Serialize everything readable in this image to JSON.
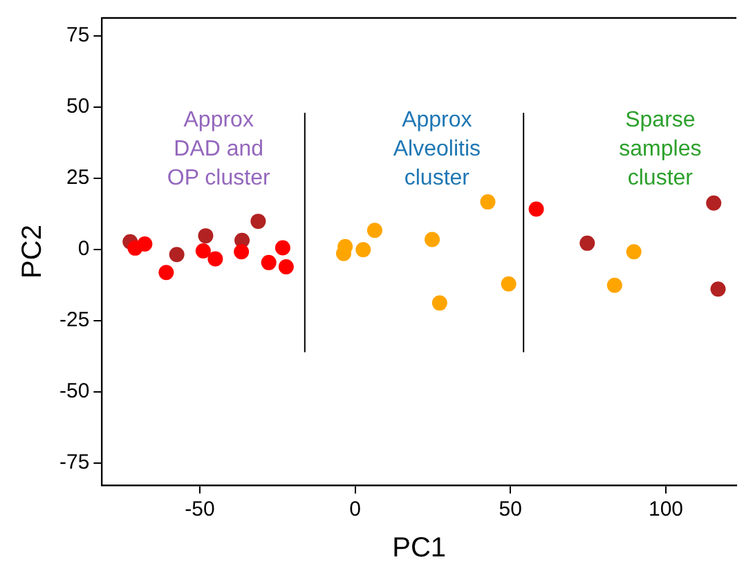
{
  "chart_data": {
    "type": "scatter",
    "xlabel": "PC1",
    "ylabel": "PC2",
    "xlim": [
      -81.5,
      122.7
    ],
    "ylim": [
      -82.8,
      81.3
    ],
    "xticks": [
      -50,
      0,
      50,
      100
    ],
    "yticks": [
      -75,
      -50,
      -25,
      0,
      25,
      50,
      75
    ],
    "grid": false,
    "legend": false,
    "marker": "circle",
    "series": [
      {
        "color": "#b22222",
        "x": [
          -72.4,
          -57.4,
          -48.1,
          -36.4,
          -31.2,
          74.7,
          115.4,
          116.8
        ],
        "values": [
          2.7,
          -1.8,
          4.8,
          3.2,
          9.9,
          2.2,
          16.3,
          -13.9
        ]
      },
      {
        "color": "#ff0000",
        "x": [
          -70.8,
          -67.7,
          -60.8,
          -48.9,
          -45,
          -36.6,
          -23.3,
          -27.8,
          -22.2,
          58.3
        ],
        "values": [
          0.5,
          1.9,
          -8.1,
          -0.5,
          -3.3,
          -0.8,
          0.6,
          -4.6,
          -6.1,
          14.2
        ]
      },
      {
        "color": "#ffa500",
        "x": [
          -3.2,
          -3.7,
          2.6,
          6.3,
          24.8,
          27.2,
          42.7,
          49.4,
          83.5,
          89.7
        ],
        "values": [
          1.0,
          -1.4,
          -0.1,
          6.7,
          3.5,
          -18.8,
          16.7,
          -12.1,
          -12.6,
          -0.8
        ]
      },
      {
        "type": "line",
        "color": "#000000",
        "marker": "none",
        "x": [
          -16.2,
          -16.2
        ],
        "values": [
          47.8,
          -35.9
        ]
      },
      {
        "type": "line",
        "color": "#000000",
        "marker": "none",
        "x": [
          54.2,
          54.2
        ],
        "values": [
          47.8,
          -35.9
        ]
      }
    ],
    "annotations": [
      "Approx\nDAD and\nOP cluster",
      "Approx\nAlveolitis\ncluster",
      "Sparse\nsamples\ncluster"
    ]
  }
}
